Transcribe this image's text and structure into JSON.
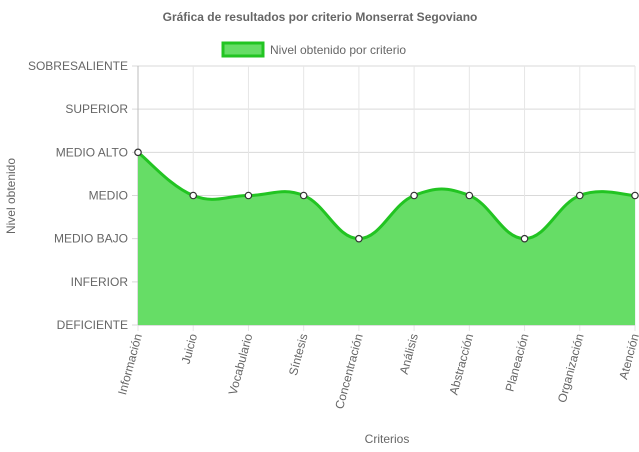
{
  "chart_data": {
    "type": "area",
    "title": "Gráfica de resultados por criterio Monserrat Segoviano",
    "xlabel": "Criterios",
    "ylabel": "Nivel obtenido",
    "y_levels": [
      "DEFICIENTE",
      "INFERIOR",
      "MEDIO BAJO",
      "MEDIO",
      "MEDIO ALTO",
      "SUPERIOR",
      "SOBRESALIENTE"
    ],
    "ylim": [
      0,
      6
    ],
    "categories": [
      "Información",
      "Juicio",
      "Vocabulario",
      "Síntesis",
      "Concentración",
      "Análisis",
      "Abstracción",
      "Planeación",
      "Organización",
      "Atención"
    ],
    "series": [
      {
        "name": "Nivel obtenido por criterio",
        "values": [
          4,
          3,
          3,
          3,
          2,
          3,
          3,
          2,
          3,
          3
        ],
        "fill_color": "#66dd66",
        "line_color": "#22c422"
      }
    ],
    "grid": true,
    "legend_position": "top"
  }
}
